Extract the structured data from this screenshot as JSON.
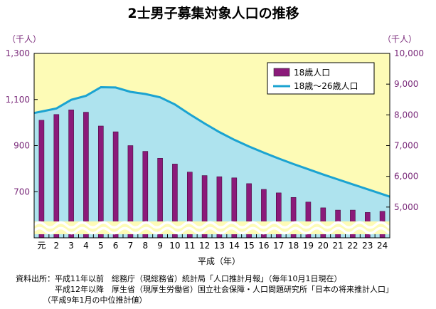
{
  "chart_data": {
    "type": "bar",
    "title": "2士男子募集対象人口の推移",
    "left_unit": "（千人）",
    "right_unit": "（千人）",
    "xlabel": "平成（年）",
    "categories": [
      "元",
      "2",
      "3",
      "4",
      "5",
      "6",
      "7",
      "8",
      "9",
      "10",
      "11",
      "12",
      "13",
      "14",
      "15",
      "16",
      "17",
      "18",
      "19",
      "20",
      "21",
      "22",
      "23",
      "24"
    ],
    "left_axis": {
      "ticks": [
        "1,300",
        "1,100",
        "900",
        "700"
      ],
      "ylim": [
        500,
        1300
      ]
    },
    "right_axis": {
      "ticks": [
        "10,000",
        "9,000",
        "8,000",
        "7,000",
        "6,000",
        "5,000"
      ],
      "ylim": [
        4000,
        10000
      ]
    },
    "series": [
      {
        "name": "18歳人口",
        "type": "bar",
        "axis": "left",
        "color": "#8b1a7a",
        "values": [
          1010,
          1035,
          1055,
          1045,
          985,
          960,
          900,
          875,
          845,
          820,
          785,
          770,
          765,
          760,
          735,
          710,
          695,
          675,
          655,
          630,
          620,
          620,
          610,
          615
        ]
      },
      {
        "name": "18歳～26歳人口",
        "type": "area",
        "axis": "right",
        "color": "#1ba3d1",
        "fill": "#aee3ee",
        "values": [
          8110,
          8210,
          8490,
          8620,
          8900,
          8890,
          8750,
          8680,
          8570,
          8340,
          8020,
          7720,
          7440,
          7190,
          6970,
          6770,
          6580,
          6400,
          6230,
          6060,
          5900,
          5740,
          5580,
          5420
        ]
      }
    ],
    "legend_position": "top-right",
    "plot_background": "#fdfbb6"
  },
  "source": {
    "line1": "資料出所：平成11年以前　総務庁（現総務省）統計局「人口推計月報」（毎年10月1日現在）",
    "line2": "　　　　　平成12年以降　厚生省（現厚生労働省）国立社会保障・人口問題研究所「日本の将来推計人口」",
    "line3": "　　　　（平成9年1月の中位推計値）"
  }
}
